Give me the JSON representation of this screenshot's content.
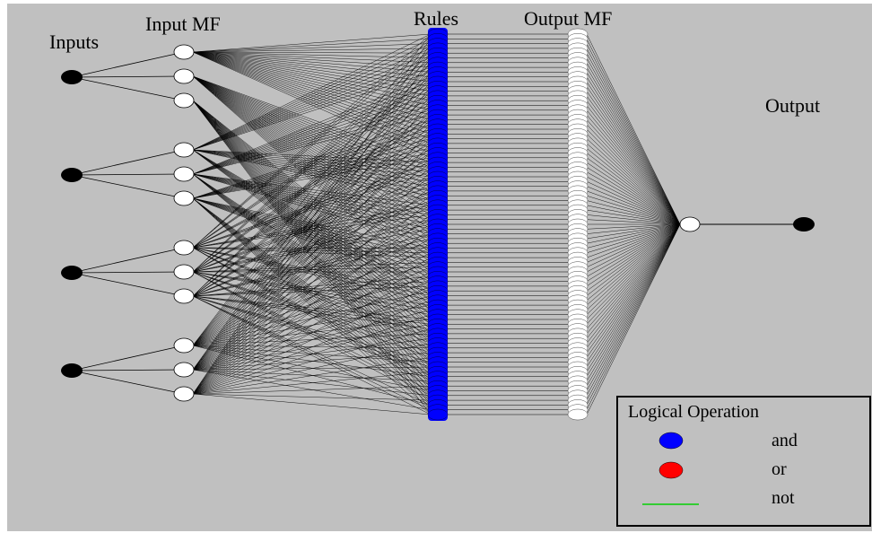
{
  "labels": {
    "inputs": "Inputs",
    "input_mf": "Input MF",
    "rules": "Rules",
    "output_mf": "Output MF",
    "output": "Output"
  },
  "legend": {
    "title": "Logical Operation",
    "items": [
      {
        "label": "and",
        "symbol": "ellipse",
        "color": "#0000ff"
      },
      {
        "label": "or",
        "symbol": "ellipse",
        "color": "#ff0000"
      },
      {
        "label": "not",
        "symbol": "line",
        "color": "#33cc33"
      }
    ]
  },
  "network": {
    "input_count": 4,
    "mf_per_input": 3,
    "rule_count": 81,
    "output_mf_count": 81,
    "rule_color": "#0000ff",
    "input_node_color": "#000000",
    "mf_node_color": "#ffffff",
    "background": "#c0c0c0"
  }
}
